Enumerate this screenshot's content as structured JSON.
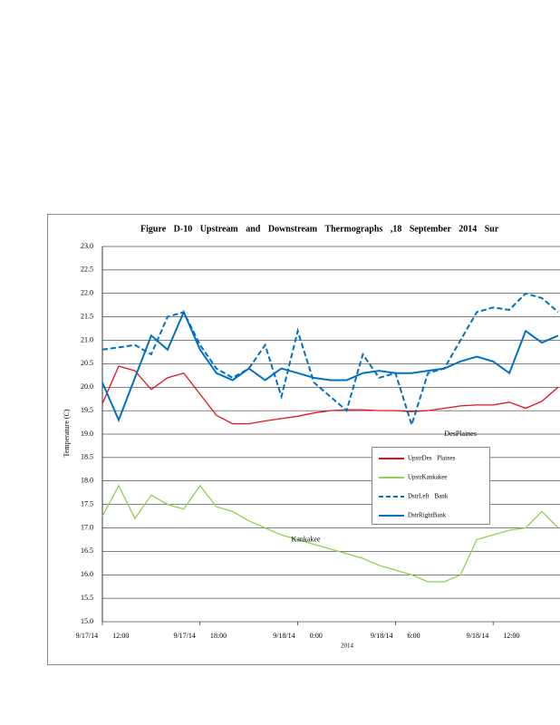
{
  "chart_data": {
    "type": "line",
    "title": "Figure D-10 Upstream and Downstream Thermographs ,18 September 2014 Sur",
    "y_label": "Temperature (C)",
    "x_label": "2014",
    "x": [
      "9/17/14 12:00",
      "9/17/14 13:00",
      "9/17/14 14:00",
      "9/17/14 15:00",
      "9/17/14 16:00",
      "9/17/14 17:00",
      "9/17/14 18:00",
      "9/17/14 19:00",
      "9/17/14 20:00",
      "9/17/14 21:00",
      "9/17/14 22:00",
      "9/17/14 23:00",
      "9/18/14 0:00",
      "9/18/14 1:00",
      "9/18/14 2:00",
      "9/18/14 3:00",
      "9/18/14 4:00",
      "9/18/14 5:00",
      "9/18/14 6:00",
      "9/18/14 7:00",
      "9/18/14 8:00",
      "9/18/14 9:00",
      "9/18/14 10:00",
      "9/18/14 11:00",
      "9/18/14 12:00",
      "9/18/14 13:00",
      "9/18/14 14:00",
      "9/18/14 15:00",
      "9/18/14 16:00"
    ],
    "series": [
      {
        "name": "UpstrDes Plaines",
        "color": "#e0141c",
        "style": "solid",
        "values": [
          19.65,
          20.45,
          20.35,
          19.95,
          20.2,
          20.3,
          19.85,
          19.4,
          19.22,
          19.22,
          19.28,
          19.33,
          19.38,
          19.45,
          19.5,
          19.52,
          19.52,
          19.5,
          19.5,
          19.48,
          19.5,
          19.55,
          19.6,
          19.62,
          19.62,
          19.68,
          19.55,
          19.7,
          20.0
        ]
      },
      {
        "name": "UpstrKankakee",
        "color": "#92d050",
        "style": "solid",
        "values": [
          17.25,
          17.9,
          17.2,
          17.7,
          17.5,
          17.4,
          17.9,
          17.45,
          17.35,
          17.15,
          17.0,
          16.85,
          16.75,
          16.65,
          16.55,
          16.45,
          16.35,
          16.2,
          16.1,
          16.0,
          15.85,
          15.85,
          16.0,
          16.75,
          16.85,
          16.95,
          17.0,
          17.35,
          17.0
        ]
      },
      {
        "name": "DstrLeft Bank",
        "color": "#0070c0",
        "style": "dashed",
        "values": [
          20.8,
          20.85,
          20.9,
          20.7,
          21.5,
          21.6,
          20.9,
          20.4,
          20.2,
          20.4,
          20.9,
          19.8,
          21.2,
          20.1,
          19.8,
          19.5,
          20.7,
          20.2,
          20.3,
          19.2,
          20.3,
          20.4,
          21.0,
          21.6,
          21.7,
          21.65,
          22.0,
          21.9,
          21.6
        ]
      },
      {
        "name": "DstrRightBank",
        "color": "#0070c0",
        "style": "solid",
        "values": [
          20.1,
          19.3,
          20.2,
          21.1,
          20.8,
          21.6,
          20.8,
          20.3,
          20.15,
          20.4,
          20.15,
          20.4,
          20.3,
          20.2,
          20.15,
          20.15,
          20.3,
          20.35,
          20.3,
          20.3,
          20.35,
          20.4,
          20.55,
          20.65,
          20.55,
          20.3,
          21.2,
          20.95,
          21.1
        ]
      }
    ],
    "annotations": [
      {
        "text": "DesPlaines",
        "x": "9/18/14 10:00",
        "y": 19.0
      },
      {
        "text": "Kankakee",
        "x": "9/18/14 0:30",
        "y": 16.75
      }
    ],
    "xlim": [
      "9/17/14 12:00",
      "9/18/14 16:00"
    ],
    "xticks": [
      "9/17/14 12:00",
      "9/17/14 18:00",
      "9/18/14 0:00",
      "9/18/14 6:00",
      "9/18/14 12:00"
    ],
    "ylim": [
      15.0,
      23.0
    ],
    "yticks": [
      {
        "value": 15,
        "label": "15.0"
      },
      {
        "value": 15.5,
        "label": "15.5"
      },
      {
        "value": 16,
        "label": "16.0"
      },
      {
        "value": 16.5,
        "label": "16.5"
      },
      {
        "value": 17,
        "label": "17.0"
      },
      {
        "value": 17.5,
        "label": "17.5"
      },
      {
        "value": 18,
        "label": "18.0"
      },
      {
        "value": 18.5,
        "label": "18.5"
      },
      {
        "value": 19,
        "label": "19.0"
      },
      {
        "value": 19.5,
        "label": "19.5"
      },
      {
        "value": 20,
        "label": "20.0"
      },
      {
        "value": 20.5,
        "label": "20.5"
      },
      {
        "value": 21,
        "label": "21.0"
      },
      {
        "value": 21.5,
        "label": "21.5"
      },
      {
        "value": 22,
        "label": "22.0"
      },
      {
        "value": 22.5,
        "label": "22.5"
      },
      {
        "value": 23,
        "label": "23.0"
      }
    ],
    "grid": true
  }
}
